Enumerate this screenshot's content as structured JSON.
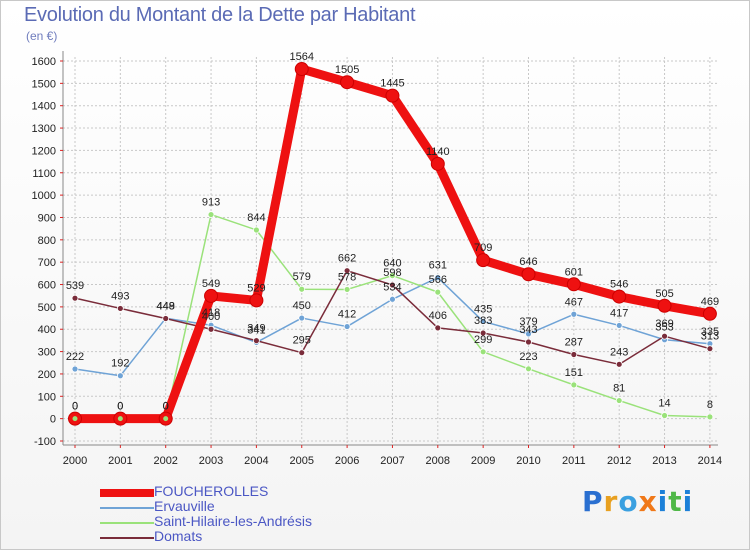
{
  "title": "Evolution du Montant de la Dette par Habitant",
  "unit_label": "(en €)",
  "logo": {
    "text": "Proxiti",
    "letter_colors": [
      "#2a6fd0",
      "#e8a020",
      "#3aa0e0",
      "#f07818",
      "#1c80d8",
      "#50b848",
      "#1c80d8"
    ]
  },
  "chart_data": {
    "type": "line",
    "title": "Evolution du Montant de la Dette par Habitant",
    "ylabel": "(en €)",
    "x": [
      "2000",
      "2001",
      "2002",
      "2003",
      "2004",
      "2005",
      "2006",
      "2007",
      "2008",
      "2009",
      "2010",
      "2011",
      "2012",
      "2013",
      "2014"
    ],
    "ylim": [
      -100,
      1600
    ],
    "yticks": [
      -100,
      0,
      100,
      200,
      300,
      400,
      500,
      600,
      700,
      800,
      900,
      1000,
      1100,
      1200,
      1300,
      1400,
      1500,
      1600
    ],
    "grid": true,
    "legend_position": "bottom-left",
    "series": [
      {
        "name": "FOUCHEROLLES",
        "color": "#ee1111",
        "values": [
          0,
          0,
          0,
          549,
          529,
          1564,
          1505,
          1445,
          1140,
          709,
          646,
          601,
          546,
          505,
          469
        ]
      },
      {
        "name": "Ervauville",
        "color": "#6fa3d6",
        "values": [
          222,
          192,
          449,
          418,
          341,
          450,
          412,
          534,
          631,
          435,
          379,
          467,
          417,
          353,
          335
        ]
      },
      {
        "name": "Saint-Hilaire-les-Andrésis",
        "color": "#9ae27a",
        "values": [
          0,
          0,
          0,
          913,
          844,
          579,
          578,
          640,
          566,
          299,
          223,
          151,
          81,
          14,
          8
        ]
      },
      {
        "name": "Domats",
        "color": "#7a2c3a",
        "values": [
          539,
          493,
          448,
          400,
          349,
          295,
          662,
          598,
          406,
          383,
          343,
          287,
          243,
          369,
          313
        ]
      }
    ]
  }
}
